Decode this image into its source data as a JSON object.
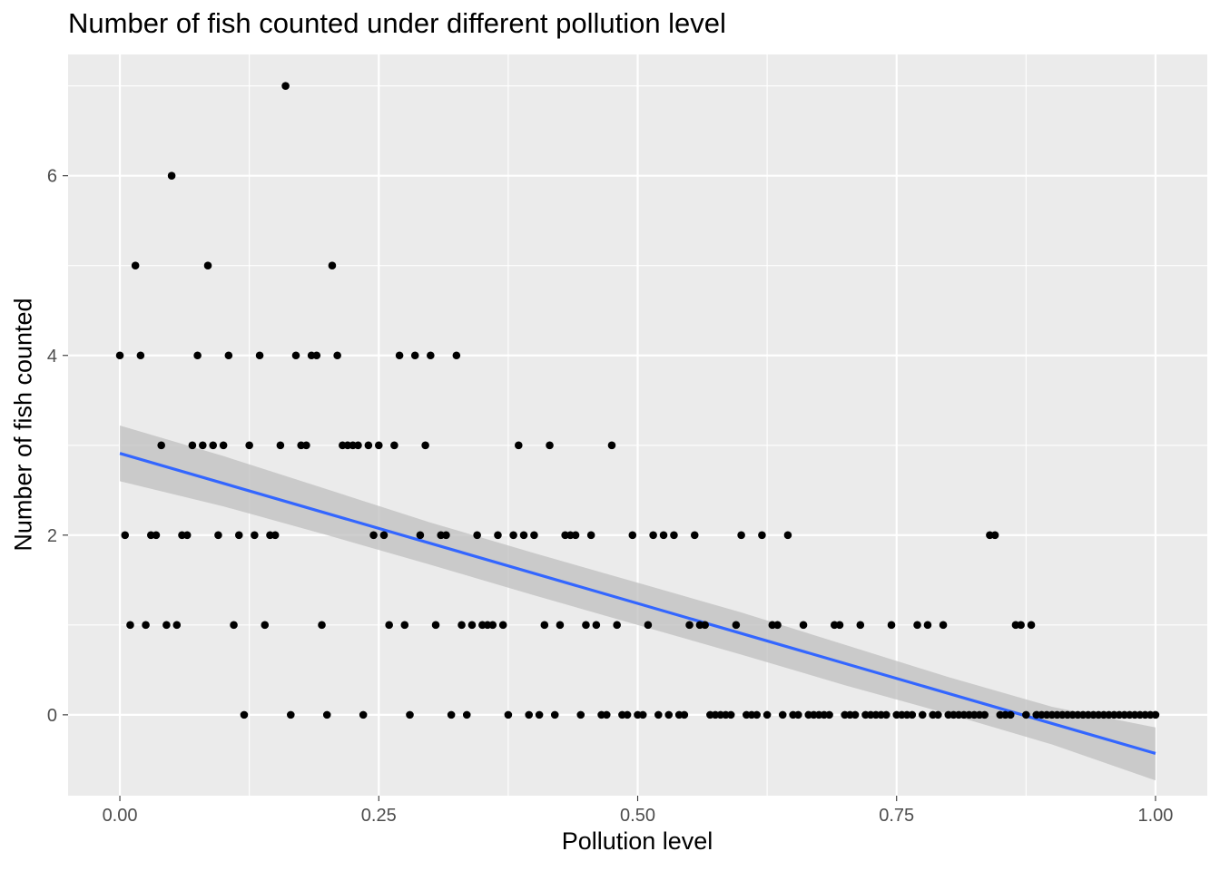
{
  "chart_data": {
    "type": "scatter",
    "title": "Number of fish counted under different pollution level",
    "xlabel": "Pollution level",
    "ylabel": "Number of fish counted",
    "xlim": [
      -0.05,
      1.05
    ],
    "ylim": [
      -0.9,
      7.35
    ],
    "x_ticks": [
      0.0,
      0.25,
      0.5,
      0.75,
      1.0
    ],
    "x_tick_labels": [
      "0.00",
      "0.25",
      "0.50",
      "0.75",
      "1.00"
    ],
    "y_ticks": [
      0,
      2,
      4,
      6
    ],
    "y_tick_labels": [
      "0",
      "2",
      "4",
      "6"
    ],
    "grid": true,
    "background": "#ebebeb",
    "grid_major_color": "#ffffff",
    "point_color": "#000000",
    "line_color": "#3366ff",
    "ribbon_color": "#bfbfbf",
    "points": [
      [
        0.0,
        4
      ],
      [
        0.005,
        2
      ],
      [
        0.01,
        1
      ],
      [
        0.015,
        5
      ],
      [
        0.02,
        4
      ],
      [
        0.025,
        1
      ],
      [
        0.03,
        2
      ],
      [
        0.035,
        2
      ],
      [
        0.04,
        3
      ],
      [
        0.045,
        1
      ],
      [
        0.05,
        6
      ],
      [
        0.055,
        1
      ],
      [
        0.06,
        2
      ],
      [
        0.065,
        2
      ],
      [
        0.07,
        3
      ],
      [
        0.075,
        4
      ],
      [
        0.08,
        3
      ],
      [
        0.085,
        5
      ],
      [
        0.09,
        3
      ],
      [
        0.095,
        2
      ],
      [
        0.1,
        3
      ],
      [
        0.105,
        4
      ],
      [
        0.11,
        1
      ],
      [
        0.115,
        2
      ],
      [
        0.12,
        0
      ],
      [
        0.125,
        3
      ],
      [
        0.13,
        2
      ],
      [
        0.135,
        4
      ],
      [
        0.14,
        1
      ],
      [
        0.145,
        2
      ],
      [
        0.15,
        2
      ],
      [
        0.155,
        3
      ],
      [
        0.16,
        7
      ],
      [
        0.165,
        0
      ],
      [
        0.17,
        4
      ],
      [
        0.175,
        3
      ],
      [
        0.18,
        3
      ],
      [
        0.185,
        4
      ],
      [
        0.19,
        4
      ],
      [
        0.195,
        1
      ],
      [
        0.2,
        0
      ],
      [
        0.205,
        5
      ],
      [
        0.21,
        4
      ],
      [
        0.215,
        3
      ],
      [
        0.22,
        3
      ],
      [
        0.225,
        3
      ],
      [
        0.23,
        3
      ],
      [
        0.235,
        0
      ],
      [
        0.24,
        3
      ],
      [
        0.245,
        2
      ],
      [
        0.25,
        3
      ],
      [
        0.255,
        2
      ],
      [
        0.26,
        1
      ],
      [
        0.265,
        3
      ],
      [
        0.27,
        4
      ],
      [
        0.275,
        1
      ],
      [
        0.28,
        0
      ],
      [
        0.285,
        4
      ],
      [
        0.29,
        2
      ],
      [
        0.295,
        3
      ],
      [
        0.3,
        4
      ],
      [
        0.305,
        1
      ],
      [
        0.31,
        2
      ],
      [
        0.315,
        2
      ],
      [
        0.32,
        0
      ],
      [
        0.325,
        4
      ],
      [
        0.33,
        1
      ],
      [
        0.335,
        0
      ],
      [
        0.34,
        1
      ],
      [
        0.345,
        2
      ],
      [
        0.35,
        1
      ],
      [
        0.355,
        1
      ],
      [
        0.36,
        1
      ],
      [
        0.365,
        2
      ],
      [
        0.37,
        1
      ],
      [
        0.375,
        0
      ],
      [
        0.38,
        2
      ],
      [
        0.385,
        3
      ],
      [
        0.39,
        2
      ],
      [
        0.395,
        0
      ],
      [
        0.4,
        2
      ],
      [
        0.405,
        0
      ],
      [
        0.41,
        1
      ],
      [
        0.415,
        3
      ],
      [
        0.42,
        0
      ],
      [
        0.425,
        1
      ],
      [
        0.43,
        2
      ],
      [
        0.435,
        2
      ],
      [
        0.44,
        2
      ],
      [
        0.445,
        0
      ],
      [
        0.45,
        1
      ],
      [
        0.455,
        2
      ],
      [
        0.46,
        1
      ],
      [
        0.465,
        0
      ],
      [
        0.47,
        0
      ],
      [
        0.475,
        3
      ],
      [
        0.48,
        1
      ],
      [
        0.485,
        0
      ],
      [
        0.49,
        0
      ],
      [
        0.495,
        2
      ],
      [
        0.5,
        0
      ],
      [
        0.505,
        0
      ],
      [
        0.51,
        1
      ],
      [
        0.515,
        2
      ],
      [
        0.52,
        0
      ],
      [
        0.525,
        2
      ],
      [
        0.53,
        0
      ],
      [
        0.535,
        2
      ],
      [
        0.54,
        0
      ],
      [
        0.545,
        0
      ],
      [
        0.55,
        1
      ],
      [
        0.555,
        2
      ],
      [
        0.56,
        1
      ],
      [
        0.565,
        1
      ],
      [
        0.57,
        0
      ],
      [
        0.575,
        0
      ],
      [
        0.58,
        0
      ],
      [
        0.585,
        0
      ],
      [
        0.59,
        0
      ],
      [
        0.595,
        1
      ],
      [
        0.6,
        2
      ],
      [
        0.605,
        0
      ],
      [
        0.61,
        0
      ],
      [
        0.615,
        0
      ],
      [
        0.62,
        2
      ],
      [
        0.625,
        0
      ],
      [
        0.63,
        1
      ],
      [
        0.635,
        1
      ],
      [
        0.64,
        0
      ],
      [
        0.645,
        2
      ],
      [
        0.65,
        0
      ],
      [
        0.655,
        0
      ],
      [
        0.66,
        1
      ],
      [
        0.665,
        0
      ],
      [
        0.67,
        0
      ],
      [
        0.675,
        0
      ],
      [
        0.68,
        0
      ],
      [
        0.685,
        0
      ],
      [
        0.69,
        1
      ],
      [
        0.695,
        1
      ],
      [
        0.7,
        0
      ],
      [
        0.705,
        0
      ],
      [
        0.71,
        0
      ],
      [
        0.715,
        1
      ],
      [
        0.72,
        0
      ],
      [
        0.725,
        0
      ],
      [
        0.73,
        0
      ],
      [
        0.735,
        0
      ],
      [
        0.74,
        0
      ],
      [
        0.745,
        1
      ],
      [
        0.75,
        0
      ],
      [
        0.755,
        0
      ],
      [
        0.76,
        0
      ],
      [
        0.765,
        0
      ],
      [
        0.77,
        1
      ],
      [
        0.775,
        0
      ],
      [
        0.78,
        1
      ],
      [
        0.785,
        0
      ],
      [
        0.79,
        0
      ],
      [
        0.795,
        1
      ],
      [
        0.8,
        0
      ],
      [
        0.805,
        0
      ],
      [
        0.81,
        0
      ],
      [
        0.815,
        0
      ],
      [
        0.82,
        0
      ],
      [
        0.825,
        0
      ],
      [
        0.83,
        0
      ],
      [
        0.835,
        0
      ],
      [
        0.84,
        2
      ],
      [
        0.845,
        2
      ],
      [
        0.85,
        0
      ],
      [
        0.855,
        0
      ],
      [
        0.86,
        0
      ],
      [
        0.865,
        1
      ],
      [
        0.87,
        1
      ],
      [
        0.875,
        0
      ],
      [
        0.88,
        1
      ],
      [
        0.885,
        0
      ],
      [
        0.89,
        0
      ],
      [
        0.895,
        0
      ],
      [
        0.9,
        0
      ],
      [
        0.905,
        0
      ],
      [
        0.91,
        0
      ],
      [
        0.915,
        0
      ],
      [
        0.92,
        0
      ],
      [
        0.925,
        0
      ],
      [
        0.93,
        0
      ],
      [
        0.935,
        0
      ],
      [
        0.94,
        0
      ],
      [
        0.945,
        0
      ],
      [
        0.95,
        0
      ],
      [
        0.955,
        0
      ],
      [
        0.96,
        0
      ],
      [
        0.965,
        0
      ],
      [
        0.97,
        0
      ],
      [
        0.975,
        0
      ],
      [
        0.98,
        0
      ],
      [
        0.985,
        0
      ],
      [
        0.99,
        0
      ],
      [
        0.995,
        0
      ],
      [
        1.0,
        0
      ]
    ],
    "fit_line": {
      "x": [
        0.0,
        1.0
      ],
      "y": [
        2.91,
        -0.43
      ]
    },
    "confidence_band": {
      "x": [
        0.0,
        0.1,
        0.2,
        0.3,
        0.4,
        0.5,
        0.6,
        0.7,
        0.8,
        0.9,
        1.0
      ],
      "lower": [
        2.6,
        2.32,
        2.0,
        1.67,
        1.33,
        1.0,
        0.67,
        0.33,
        0.01,
        -0.33,
        -0.73
      ],
      "upper": [
        3.22,
        2.88,
        2.51,
        2.14,
        1.8,
        1.47,
        1.14,
        0.78,
        0.42,
        0.09,
        -0.14
      ]
    }
  }
}
